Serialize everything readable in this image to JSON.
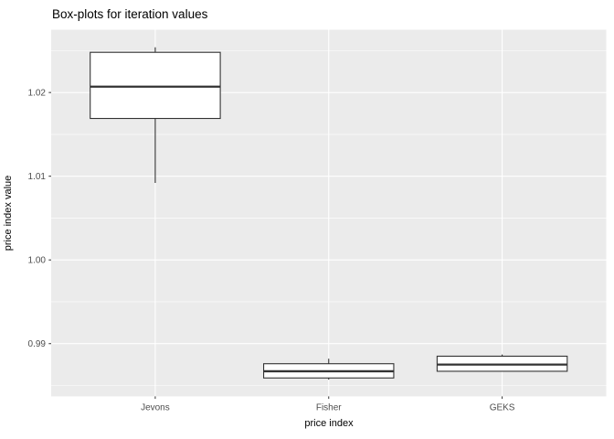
{
  "title": "Box-plots for iteration values",
  "colors": {
    "plot_background": "#FFFFFF",
    "panel_background": "#EBEBEB",
    "grid_line": "#FFFFFF",
    "box_stroke": "#333333",
    "box_fill": "#FFFFFF",
    "tick_label": "#4D4D4D",
    "axis_title": "#000000"
  },
  "chart_data": {
    "type": "boxplot",
    "title": "Box-plots for iteration values",
    "xlabel": "price index",
    "ylabel": "price index value",
    "categories": [
      "Jevons",
      "Fisher",
      "GEKS"
    ],
    "series": [
      {
        "name": "Jevons",
        "min": 1.0092,
        "q1": 1.0169,
        "median": 1.0207,
        "q3": 1.0248,
        "max": 1.0254
      },
      {
        "name": "Fisher",
        "min": 0.9857,
        "q1": 0.9859,
        "median": 0.9867,
        "q3": 0.9876,
        "max": 0.9882
      },
      {
        "name": "GEKS",
        "min": 0.9867,
        "q1": 0.9867,
        "median": 0.9875,
        "q3": 0.9885,
        "max": 0.9887
      }
    ],
    "ylim": [
      0.9837,
      1.0275
    ],
    "yticks": [
      0.99,
      1.0,
      1.01,
      1.02
    ],
    "ytick_labels": [
      "0.99",
      "1.00",
      "1.01",
      "1.02"
    ],
    "yticks_minor": [
      0.985,
      0.995,
      1.005,
      1.015,
      1.025
    ],
    "grid": true,
    "legend": "none",
    "x_expand": 0.6,
    "box_width_units": 0.75
  }
}
